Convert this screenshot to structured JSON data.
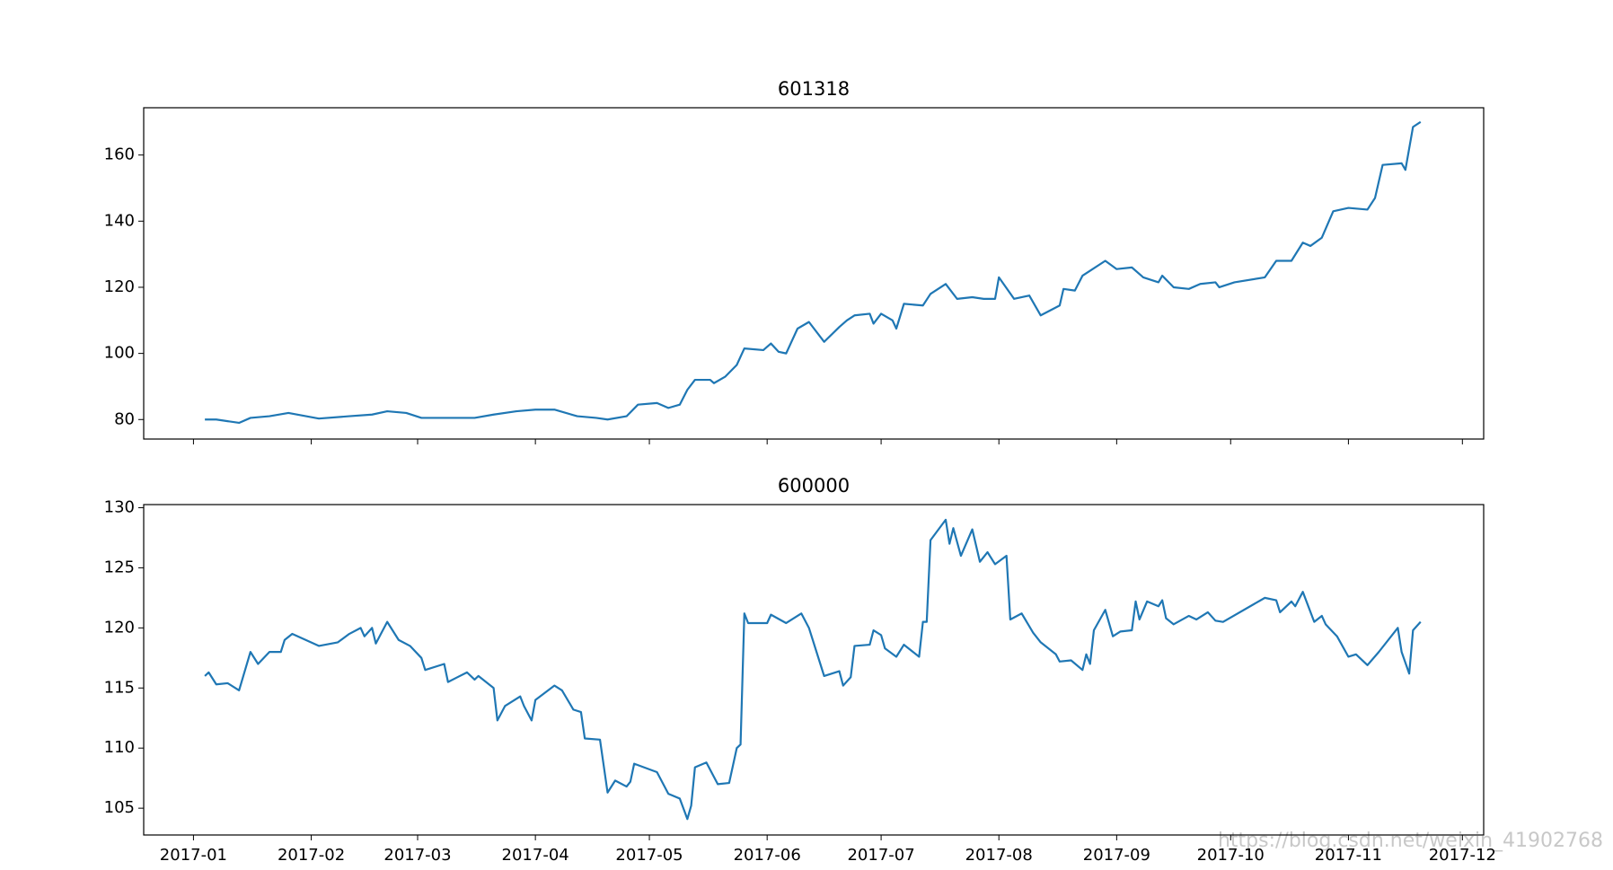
{
  "chart_data": [
    {
      "type": "line",
      "title": "601318",
      "color": "#1f77b4",
      "x": [
        3,
        6,
        9,
        12,
        15,
        20,
        25,
        33,
        41,
        47,
        51,
        56,
        60,
        68,
        74,
        79,
        85,
        90,
        95,
        101,
        106,
        109,
        114,
        117,
        122,
        125,
        128,
        130,
        132,
        136,
        137,
        140,
        143,
        145,
        150,
        152,
        154,
        156,
        159,
        162,
        166,
        170,
        172,
        174,
        178,
        179,
        181,
        184,
        185,
        187,
        192,
        194,
        198,
        201,
        205,
        208,
        211,
        212,
        216,
        220,
        223,
        228,
        229,
        232,
        234,
        236,
        240,
        243,
        247,
        250,
        254,
        255,
        258,
        262,
        265,
        269,
        270,
        274,
        282,
        285,
        289,
        292,
        294,
        297,
        300,
        304,
        309,
        311,
        313,
        318,
        319,
        321,
        323
      ],
      "values": [
        80,
        80,
        79.5,
        79,
        80.5,
        81,
        82,
        80.3,
        81,
        81.5,
        82.5,
        82,
        80.5,
        80.5,
        80.5,
        81.5,
        82.5,
        83,
        83,
        81,
        80.5,
        80,
        81,
        84.5,
        85,
        83.5,
        84.5,
        89,
        92,
        92,
        91,
        93,
        96.5,
        101.5,
        101,
        103,
        100.5,
        100,
        107.5,
        109.5,
        103.5,
        108,
        110,
        111.5,
        112,
        109,
        112,
        110,
        107.5,
        115,
        114.5,
        118,
        121,
        116.5,
        117,
        116.5,
        116.5,
        123,
        116.5,
        117.5,
        111.5,
        114.5,
        119.5,
        119,
        123.5,
        125,
        128,
        125.5,
        126,
        123,
        121.5,
        123.5,
        120,
        119.5,
        121,
        121.5,
        120,
        121.5,
        123,
        128,
        128,
        133.5,
        132.5,
        135,
        143,
        144,
        143.5,
        147,
        157,
        157.5,
        155.5,
        168.5,
        170
      ],
      "xlim": [
        -13.1,
        339.6
      ],
      "xticks": [
        0,
        31,
        59,
        90,
        120,
        151,
        181,
        212,
        243,
        273,
        304,
        334
      ],
      "ylim": [
        74.1,
        174.3
      ],
      "yticks": [
        80,
        100,
        120,
        140,
        160
      ]
    },
    {
      "type": "line",
      "title": "600000",
      "color": "#1f77b4",
      "x": [
        3,
        4,
        6,
        9,
        12,
        15,
        17,
        20,
        23,
        24,
        26,
        33,
        38,
        41,
        44,
        45,
        47,
        48,
        51,
        54,
        57,
        60,
        61,
        66,
        67,
        72,
        74,
        75,
        79,
        80,
        82,
        86,
        87,
        89,
        90,
        95,
        97,
        100,
        102,
        103,
        107,
        109,
        111,
        114,
        115,
        116,
        122,
        125,
        128,
        130,
        131,
        132,
        135,
        138,
        141,
        143,
        144,
        145,
        146,
        151,
        152,
        156,
        160,
        162,
        164,
        166,
        170,
        171,
        173,
        174,
        178,
        179,
        181,
        182,
        185,
        187,
        191,
        192,
        193,
        194,
        198,
        199,
        200,
        202,
        205,
        207,
        209,
        211,
        214,
        215,
        218,
        221,
        223,
        227,
        228,
        231,
        234,
        235,
        236,
        237,
        240,
        242,
        244,
        247,
        248,
        249,
        251,
        254,
        255,
        256,
        258,
        262,
        264,
        267,
        269,
        271,
        282,
        285,
        286,
        289,
        290,
        292,
        295,
        297,
        298,
        301,
        304,
        306,
        309,
        312,
        317,
        318,
        320,
        321,
        323
      ],
      "values": [
        116,
        116.3,
        115.3,
        115.4,
        114.8,
        118,
        117,
        118,
        118,
        119,
        119.5,
        118.5,
        118.8,
        119.5,
        120,
        119.3,
        120,
        118.7,
        120.5,
        119,
        118.5,
        117.5,
        116.5,
        117,
        115.5,
        116.3,
        115.7,
        116,
        115,
        112.3,
        113.5,
        114.3,
        113.5,
        112.3,
        114,
        115.2,
        114.8,
        113.2,
        113,
        110.8,
        110.7,
        106.3,
        107.3,
        106.8,
        107.2,
        108.7,
        108,
        106.2,
        105.8,
        104.1,
        105.2,
        108.4,
        108.8,
        107,
        107.1,
        110,
        110.3,
        121.2,
        120.4,
        120.4,
        121.1,
        120.4,
        121.2,
        120,
        118,
        116,
        116.4,
        115.2,
        115.9,
        118.5,
        118.6,
        119.8,
        119.4,
        118.3,
        117.6,
        118.6,
        117.6,
        120.5,
        120.5,
        127.3,
        129,
        127,
        128.3,
        126,
        128.2,
        125.5,
        126.3,
        125.3,
        126,
        120.7,
        121.2,
        119.6,
        118.8,
        117.8,
        117.2,
        117.3,
        116.5,
        117.8,
        117,
        119.8,
        121.5,
        119.3,
        119.7,
        119.8,
        122.2,
        120.7,
        122.2,
        121.8,
        122.3,
        120.8,
        120.3,
        121,
        120.7,
        121.3,
        120.6,
        120.5,
        122.5,
        122.3,
        121.3,
        122.2,
        121.8,
        123,
        120.5,
        121,
        120.3,
        119.3,
        117.6,
        117.8,
        116.9,
        118,
        120,
        118,
        116.2,
        119.8,
        120.5
      ],
      "xlim": [
        -13.1,
        339.6
      ],
      "xticks": [
        {
          "value": 0,
          "label": "2017-01"
        },
        {
          "value": 31,
          "label": "2017-02"
        },
        {
          "value": 59,
          "label": "2017-03"
        },
        {
          "value": 90,
          "label": "2017-04"
        },
        {
          "value": 120,
          "label": "2017-05"
        },
        {
          "value": 151,
          "label": "2017-06"
        },
        {
          "value": 181,
          "label": "2017-07"
        },
        {
          "value": 212,
          "label": "2017-08"
        },
        {
          "value": 243,
          "label": "2017-09"
        },
        {
          "value": 273,
          "label": "2017-10"
        },
        {
          "value": 304,
          "label": "2017-11"
        },
        {
          "value": 334,
          "label": "2017-12"
        }
      ],
      "ylim": [
        102.77,
        130.26
      ],
      "yticks": [
        105,
        110,
        115,
        120,
        125,
        130
      ]
    }
  ],
  "watermark": "https://blog.csdn.net/weixin_41902768"
}
